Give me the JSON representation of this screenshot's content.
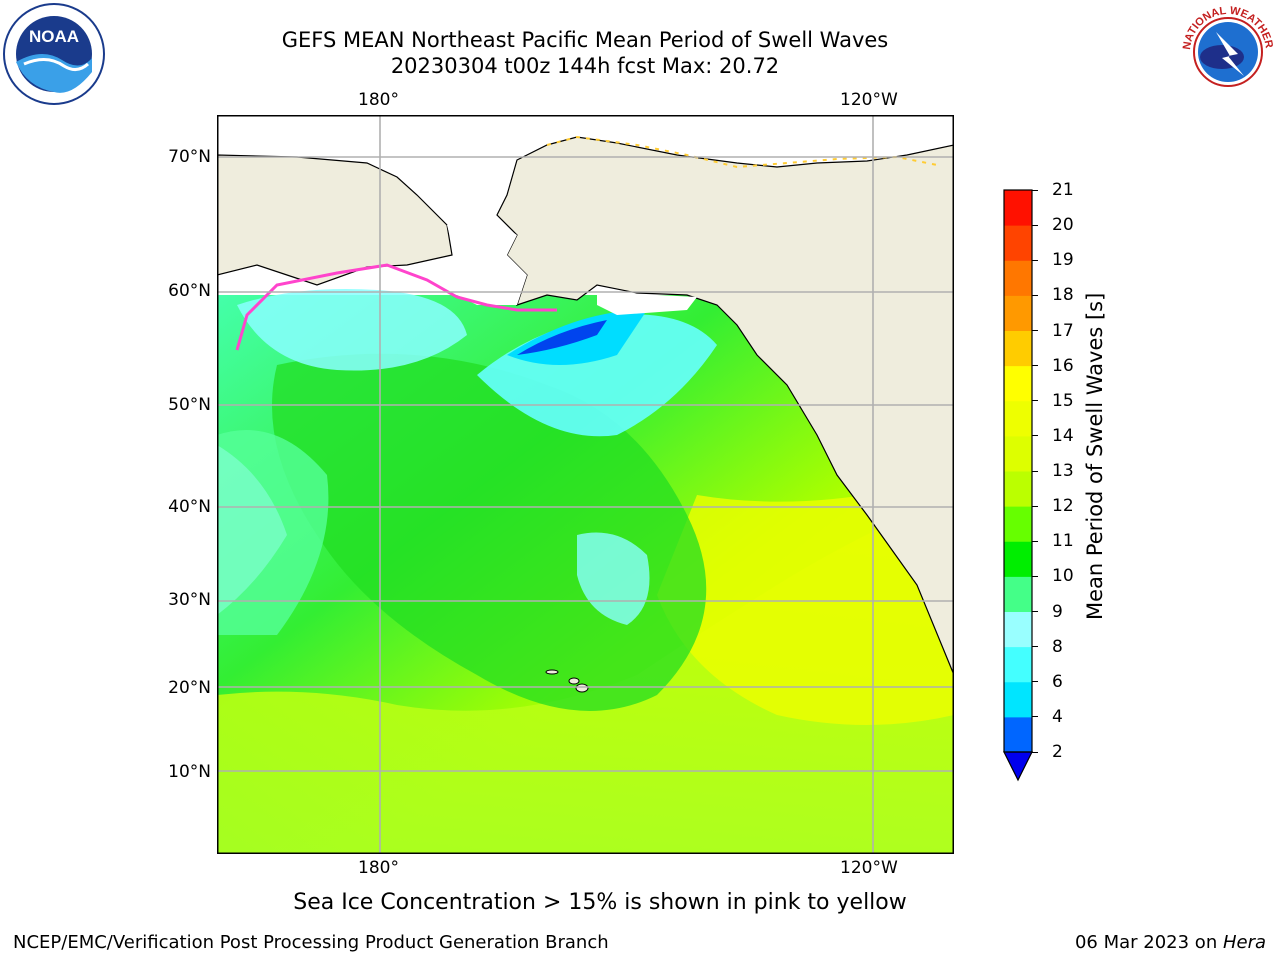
{
  "title": {
    "line1": "GEFS MEAN Northeast Pacific Mean Period of Swell Waves",
    "line2": "20230304 t00z 144h fcst   Max: 20.72"
  },
  "map": {
    "top_lon_labels": [
      "180°",
      "120°W"
    ],
    "bottom_lon_labels": [
      "180°",
      "120°W"
    ],
    "lat_labels": [
      "70°N",
      "60°N",
      "50°N",
      "40°N",
      "30°N",
      "20°N",
      "10°N"
    ],
    "colors": {
      "land": "#efeddd",
      "grid": "#b0b0b0"
    }
  },
  "colorbar": {
    "label": "Mean Period of Swell Waves [s]",
    "ticks": [
      "2",
      "4",
      "6",
      "8",
      "9",
      "10",
      "11",
      "12",
      "13",
      "14",
      "15",
      "16",
      "17",
      "18",
      "19",
      "20",
      "21"
    ],
    "colors": [
      "#0066ff",
      "#00e5ff",
      "#44ffff",
      "#99ffff",
      "#44ff88",
      "#00ee00",
      "#66ff00",
      "#bbff00",
      "#ddff00",
      "#eeff00",
      "#ffff00",
      "#ffcc00",
      "#ff9900",
      "#ff7700",
      "#ff4400",
      "#ff1100",
      "#ff0000"
    ],
    "extend_color": "#0000ee"
  },
  "notes": {
    "ice": "Sea Ice Concentration > 15% is shown in pink to yellow"
  },
  "footer": {
    "left": "NCEP/EMC/Verification Post Processing Product Generation Branch",
    "right_date": "06 Mar 2023 on ",
    "right_host": "Hera"
  },
  "logos": {
    "noaa": "NOAA",
    "nws_ring": "NATIONAL WEATHER SERVICE"
  }
}
